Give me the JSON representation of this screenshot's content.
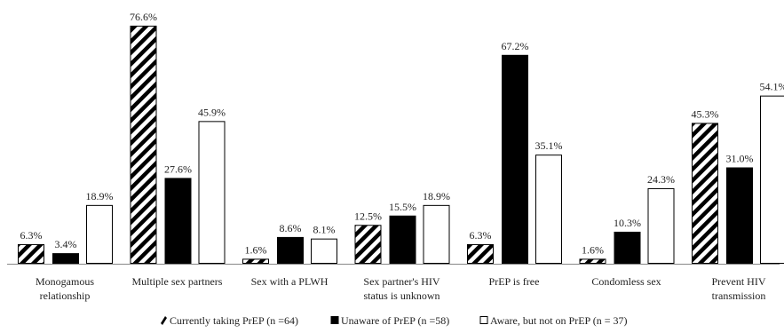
{
  "chart_data": {
    "type": "bar",
    "title": "",
    "xlabel": "",
    "ylabel": "",
    "ylim": [
      0,
      80
    ],
    "grid": false,
    "legend_position": "bottom",
    "categories": [
      "Monogamous relationship",
      "Multiple sex partners",
      "Sex with a PLWH",
      "Sex partner's HIV status is unknown",
      "PrEP is free",
      "Condomless sex",
      "Prevent HIV transmission"
    ],
    "category_lines": [
      [
        "Monogamous",
        "relationship"
      ],
      [
        "Multiple sex partners"
      ],
      [
        "Sex with a PLWH"
      ],
      [
        "Sex partner's HIV",
        "status is unknown"
      ],
      [
        "PrEP is free"
      ],
      [
        "Condomless sex"
      ],
      [
        "Prevent HIV",
        "transmission"
      ]
    ],
    "series": [
      {
        "name": "Currently taking PrEP (n =64)",
        "style": "hatched",
        "values": [
          6.3,
          76.6,
          1.6,
          12.5,
          6.3,
          1.6,
          45.3
        ],
        "labels": [
          "6.3%",
          "76.6%",
          "1.6%",
          "12.5%",
          "6.3%",
          "1.6%",
          "45.3%"
        ]
      },
      {
        "name": "Unaware of PrEP (n =58)",
        "style": "solid",
        "values": [
          3.4,
          27.6,
          8.6,
          15.5,
          67.2,
          10.3,
          31.0
        ],
        "labels": [
          "3.4%",
          "27.6%",
          "8.6%",
          "15.5%",
          "67.2%",
          "10.3%",
          "31.0%"
        ]
      },
      {
        "name": "Aware, but not on PrEP (n = 37)",
        "style": "outline",
        "values": [
          18.9,
          45.9,
          8.1,
          18.9,
          35.1,
          24.3,
          54.1
        ],
        "labels": [
          "18.9%",
          "45.9%",
          "8.1%",
          "18.9%",
          "35.1%",
          "24.3%",
          "54.1%"
        ]
      }
    ],
    "colors": {
      "bar_fill": "#000000",
      "outline_fill": "#ffffff",
      "axis": "#888888"
    }
  }
}
